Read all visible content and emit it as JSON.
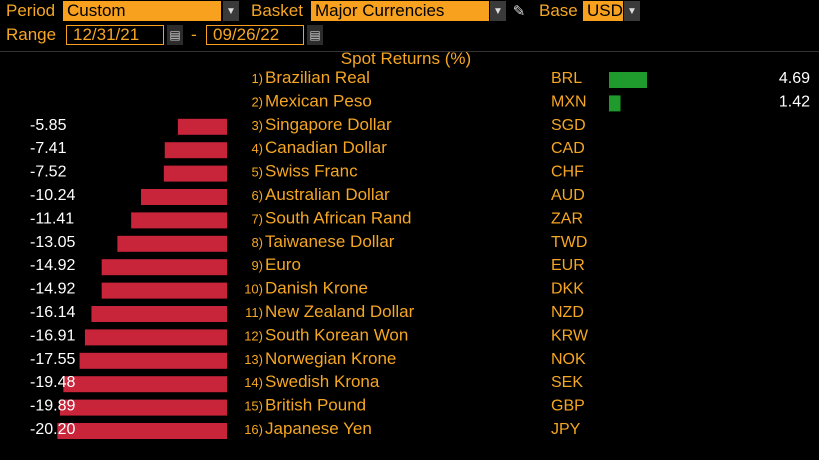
{
  "toolbar": {
    "period_label": "Period",
    "period_value": "Custom",
    "basket_label": "Basket",
    "basket_value": "Major Currencies",
    "base_label": "Base",
    "base_value": "USD",
    "range_label": "Range",
    "range_start": "12/31/21",
    "range_sep": "-",
    "range_end": "09/26/22"
  },
  "colors": {
    "accent": "#f5a623",
    "field_bg": "#f7a11e",
    "negative": "#c8243a",
    "positive": "#1f9a2c",
    "text_white": "#ffffff"
  },
  "chart_data": {
    "type": "bar",
    "title": "Spot Returns (%)",
    "categories": [
      "Brazilian Real",
      "Mexican Peso",
      "Singapore Dollar",
      "Canadian Dollar",
      "Swiss Franc",
      "Australian Dollar",
      "South African Rand",
      "Taiwanese Dollar",
      "Euro",
      "Danish Krone",
      "New Zealand Dollar",
      "South Korean Won",
      "Norwegian Krone",
      "Swedish Krona",
      "British Pound",
      "Japanese Yen"
    ],
    "ranks": [
      "1)",
      "2)",
      "3)",
      "4)",
      "5)",
      "6)",
      "7)",
      "8)",
      "9)",
      "10)",
      "11)",
      "12)",
      "13)",
      "14)",
      "15)",
      "16)"
    ],
    "codes": [
      "BRL",
      "MXN",
      "SGD",
      "CAD",
      "CHF",
      "AUD",
      "ZAR",
      "TWD",
      "EUR",
      "DKK",
      "NZD",
      "KRW",
      "NOK",
      "SEK",
      "GBP",
      "JPY"
    ],
    "values": [
      4.69,
      1.42,
      -5.85,
      -7.41,
      -7.52,
      -10.24,
      -11.41,
      -13.05,
      -14.92,
      -14.92,
      -16.14,
      -16.91,
      -17.55,
      -19.48,
      -19.89,
      -20.2
    ],
    "value_labels": [
      "4.69",
      "1.42",
      "-5.85",
      "-7.41",
      "-7.52",
      "-10.24",
      "-11.41",
      "-13.05",
      "-14.92",
      "-14.92",
      "-16.14",
      "-16.91",
      "-17.55",
      "-19.48",
      "-19.89",
      "-20.20"
    ],
    "legend": "none",
    "grid": false
  }
}
